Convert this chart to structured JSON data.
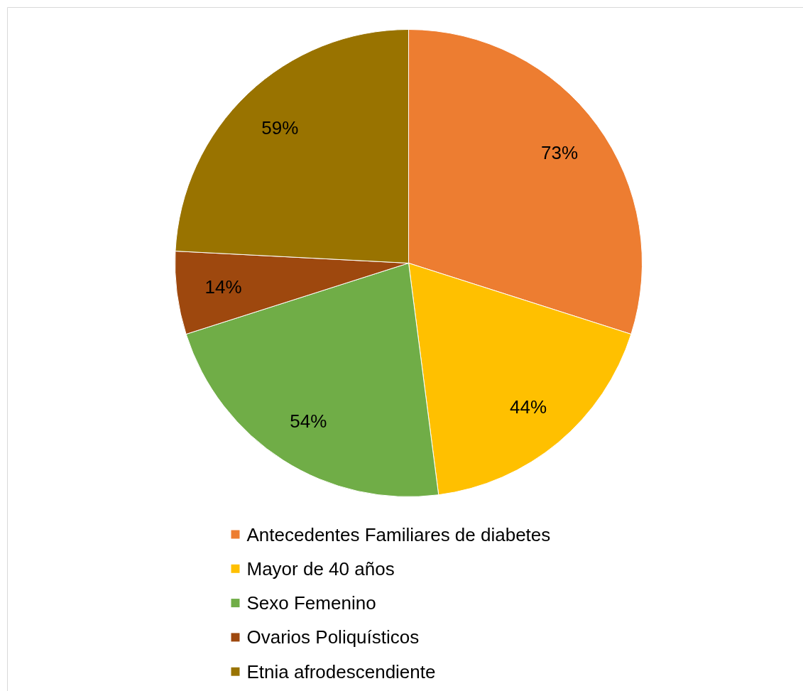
{
  "chart_data": {
    "type": "pie",
    "categories": [
      "Antecedentes Familiares de diabetes",
      "Mayor de 40 años",
      "Sexo Femenino",
      "Ovarios Poliquísticos",
      "Etnia afrodescendiente"
    ],
    "values": [
      73,
      44,
      54,
      14,
      59
    ],
    "value_labels": [
      "73%",
      "44%",
      "54%",
      "14%",
      "59%"
    ],
    "colors": [
      "#ed7d31",
      "#ffc000",
      "#70ad47",
      "#9e480e",
      "#997300"
    ],
    "legend": "bottom"
  }
}
